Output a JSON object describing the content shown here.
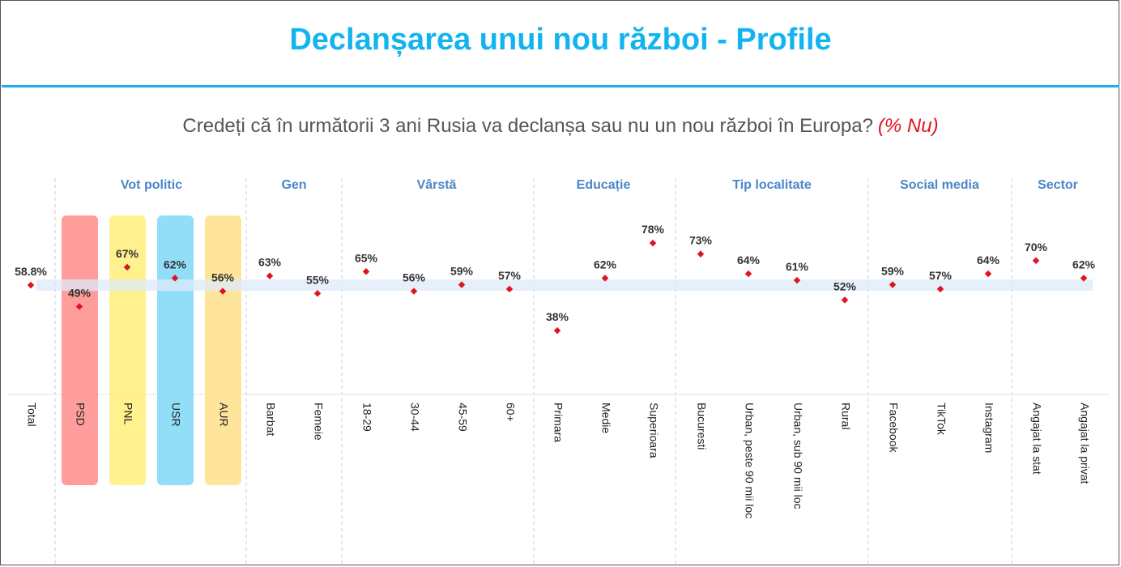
{
  "title": "Declanșarea unui nou război - Profile",
  "subtitle": "Credeți că în următorii 3 ani Rusia va declanșa sau nu un nou război în Europa?",
  "subtitle_note": "(% Nu)",
  "colors": {
    "title": "#12b4f0",
    "group_label": "#4a86c8",
    "marker": "#e0141e",
    "total_band": "#dcebfa",
    "highlight": {
      "PSD": "#ff8c8c",
      "PNL": "#fff07a",
      "USR": "#7fd8f8",
      "AUR": "#ffe08a"
    }
  },
  "chart_data": {
    "type": "scatter",
    "unit": "%",
    "ylim": [
      30,
      90
    ],
    "total": {
      "label": "Total",
      "value": 58.8,
      "display": "58.8%"
    },
    "groups": [
      {
        "name": "Vot politic",
        "items": [
          {
            "label": "PSD",
            "value": 49,
            "display": "49%",
            "highlight": "PSD"
          },
          {
            "label": "PNL",
            "value": 67,
            "display": "67%",
            "highlight": "PNL"
          },
          {
            "label": "USR",
            "value": 62,
            "display": "62%",
            "highlight": "USR"
          },
          {
            "label": "AUR",
            "value": 56,
            "display": "56%",
            "highlight": "AUR"
          }
        ]
      },
      {
        "name": "Gen",
        "items": [
          {
            "label": "Barbat",
            "value": 63,
            "display": "63%"
          },
          {
            "label": "Femeie",
            "value": 55,
            "display": "55%"
          }
        ]
      },
      {
        "name": "Vârstă",
        "items": [
          {
            "label": "18-29",
            "value": 65,
            "display": "65%"
          },
          {
            "label": "30-44",
            "value": 56,
            "display": "56%"
          },
          {
            "label": "45-59",
            "value": 59,
            "display": "59%"
          },
          {
            "label": "60+",
            "value": 57,
            "display": "57%"
          }
        ]
      },
      {
        "name": "Educație",
        "items": [
          {
            "label": "Primara",
            "value": 38,
            "display": "38%"
          },
          {
            "label": "Medie",
            "value": 62,
            "display": "62%"
          },
          {
            "label": "Superioara",
            "value": 78,
            "display": "78%"
          }
        ]
      },
      {
        "name": "Tip localitate",
        "items": [
          {
            "label": "Bucuresti",
            "value": 73,
            "display": "73%"
          },
          {
            "label": "Urban, peste 90 mii loc",
            "value": 64,
            "display": "64%"
          },
          {
            "label": "Urban, sub 90 mii loc",
            "value": 61,
            "display": "61%"
          },
          {
            "label": "Rural",
            "value": 52,
            "display": "52%"
          }
        ]
      },
      {
        "name": "Social media",
        "items": [
          {
            "label": "Facebook",
            "value": 59,
            "display": "59%"
          },
          {
            "label": "TikTok",
            "value": 57,
            "display": "57%"
          },
          {
            "label": "Instagram",
            "value": 64,
            "display": "64%"
          }
        ]
      },
      {
        "name": "Sector",
        "items": [
          {
            "label": "Angajat la stat",
            "value": 70,
            "display": "70%"
          },
          {
            "label": "Angajat la privat",
            "value": 62,
            "display": "62%"
          }
        ]
      }
    ]
  }
}
